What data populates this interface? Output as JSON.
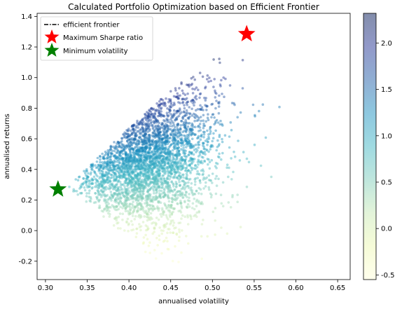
{
  "chart_data": {
    "type": "scatter",
    "title": "Calculated Portfolio Optimization based on Efficient Frontier",
    "xlabel": "annualised volatility",
    "ylabel": "annualised returns",
    "xlim": [
      0.29,
      0.665
    ],
    "ylim": [
      -0.32,
      1.42
    ],
    "xticks": [
      "0.30",
      "0.35",
      "0.40",
      "0.45",
      "0.50",
      "0.55",
      "0.60",
      "0.65"
    ],
    "yticks": [
      "-0.2",
      "0.0",
      "0.2",
      "0.4",
      "0.6",
      "0.8",
      "1.0",
      "1.2",
      "1.4"
    ],
    "grid": false,
    "legend_position": "top-left",
    "legend": [
      {
        "label": "efficient frontier",
        "marker": "dash-dot-line",
        "color": "#000000"
      },
      {
        "label": "Maximum Sharpe ratio",
        "marker": "star",
        "color": "#ff0000"
      },
      {
        "label": "Minimum volatility",
        "marker": "star",
        "color": "#008000"
      }
    ],
    "colormap": "YlGnBu",
    "colorbar": {
      "min": -0.55,
      "max": 2.32,
      "ticks": [
        "-0.5",
        "0.0",
        "0.5",
        "1.0",
        "1.5",
        "2.0"
      ]
    },
    "max_sharpe": {
      "x": 0.541,
      "y": 1.285
    },
    "min_volatility": {
      "x": 0.315,
      "y": 0.27
    },
    "random_portfolios": {
      "count": 3500,
      "volatility_range": [
        0.3,
        0.645
      ],
      "return_range": [
        -0.21,
        1.33
      ],
      "note_color_variable": "sharpe"
    }
  }
}
